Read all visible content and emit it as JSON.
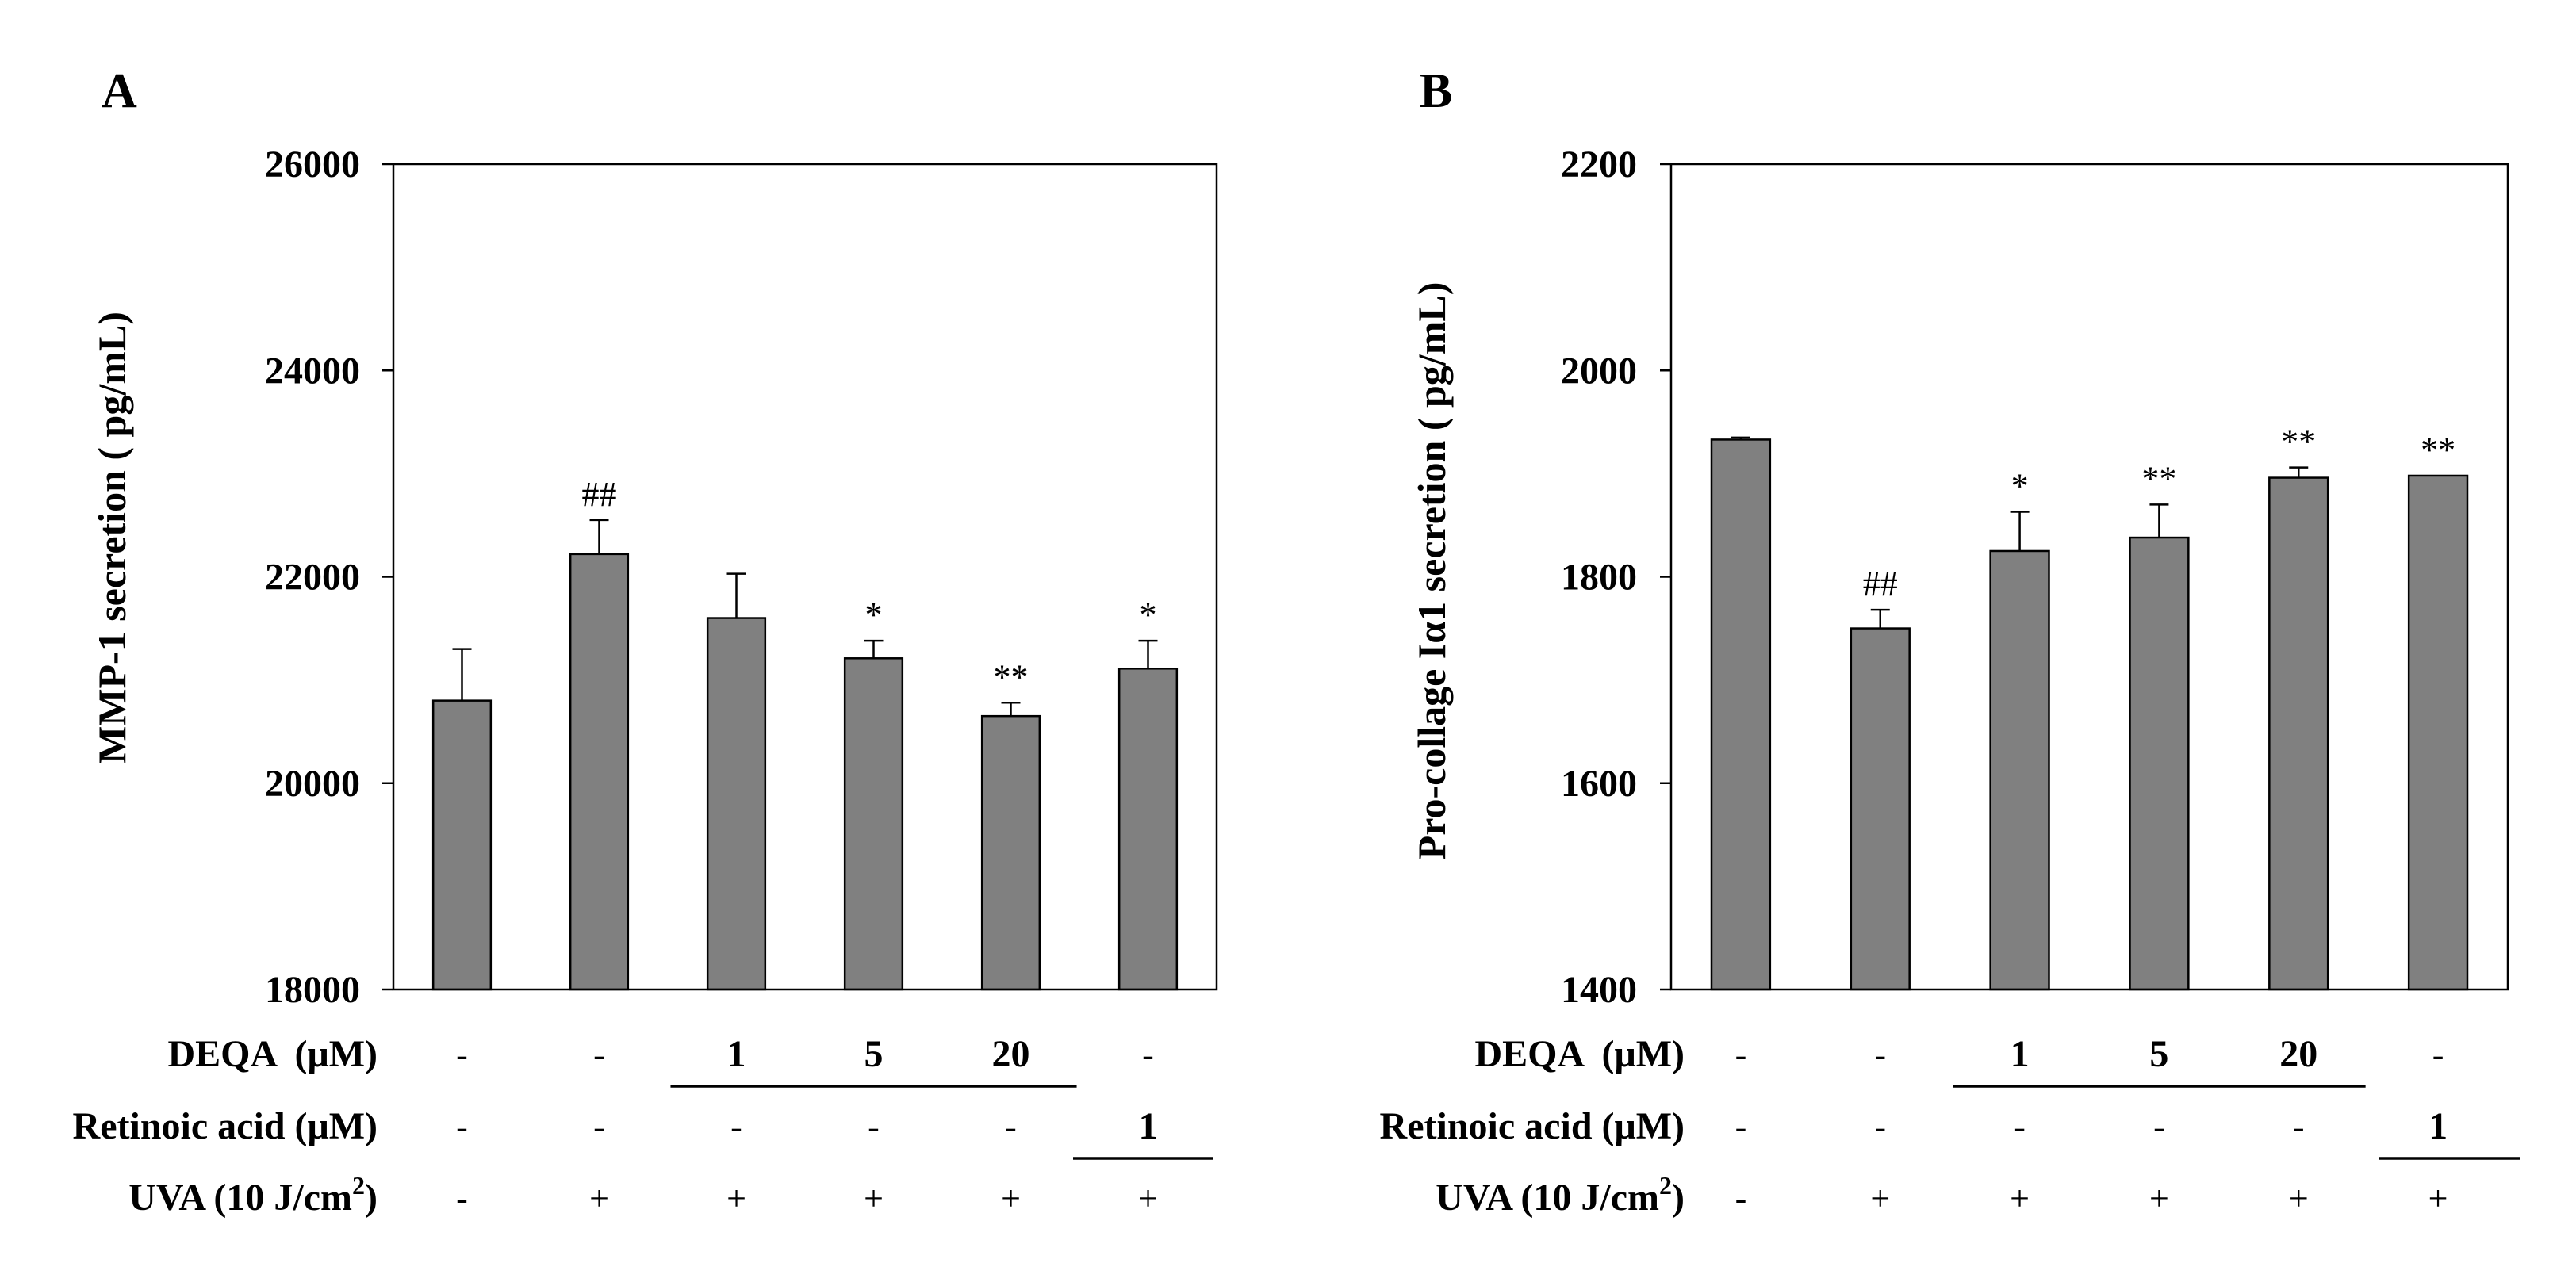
{
  "colors": {
    "bar": "#808080",
    "bar_stroke": "#000000",
    "axis": "#000000"
  },
  "chart_data": [
    {
      "type": "bar",
      "panel": "A",
      "title": "",
      "xlabel": "",
      "ylabel": "MMP-1 secretion ( pg/mL)",
      "ylim": [
        18000,
        26000
      ],
      "yticks": [
        18000,
        20000,
        22000,
        24000,
        26000
      ],
      "grid": false,
      "values": [
        20800,
        22220,
        21600,
        21210,
        20650,
        21110
      ],
      "errors": [
        500,
        330,
        430,
        170,
        130,
        270
      ],
      "annotations": [
        "",
        "##",
        "",
        "*",
        "**",
        "*"
      ]
    },
    {
      "type": "bar",
      "panel": "B",
      "title": "",
      "xlabel": "",
      "ylabel": "Pro-collage Iα1 secretion ( pg/mL)",
      "ylim": [
        1400,
        2200
      ],
      "yticks": [
        1400,
        1600,
        1800,
        2000,
        2200
      ],
      "grid": false,
      "values": [
        1933,
        1750,
        1825,
        1838,
        1896,
        1898
      ],
      "errors": [
        2,
        18,
        38,
        32,
        10,
        0
      ],
      "annotations": [
        "",
        "##",
        "*",
        "**",
        "**",
        "**"
      ]
    }
  ],
  "treatment_table": {
    "rows": [
      {
        "label": "DEQA  (μM)",
        "cells": [
          "-",
          "-",
          "1",
          "5",
          "20",
          "-"
        ],
        "bold": [
          false,
          false,
          true,
          true,
          true,
          false
        ]
      },
      {
        "label": "Retinoic acid (μM)",
        "cells": [
          "-",
          "-",
          "-",
          "-",
          "-",
          "1"
        ],
        "bold": [
          false,
          false,
          false,
          false,
          false,
          true
        ]
      },
      {
        "label_main": "UVA (10 J/cm",
        "label_sup": "2",
        "label_end": ")",
        "cells": [
          "-",
          "+",
          "+",
          "+",
          "+",
          "+"
        ],
        "bold": [
          false,
          false,
          false,
          false,
          false,
          false
        ]
      }
    ]
  }
}
